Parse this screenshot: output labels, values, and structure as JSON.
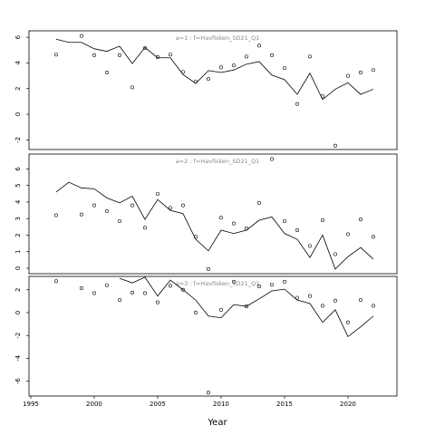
{
  "chart_data": [
    {
      "type": "line",
      "title": "a=1 : f=Havfisken_SD21_Q1",
      "x": [
        1997,
        1998,
        1999,
        2000,
        2001,
        2002,
        2003,
        2004,
        2005,
        2006,
        2007,
        2008,
        2009,
        2010,
        2011,
        2012,
        2013,
        2014,
        2015,
        2016,
        2017,
        2018,
        2019,
        2020,
        2021,
        2022
      ],
      "series": [
        {
          "style": "line",
          "color": "#000000",
          "values": [
            5.85,
            5.6,
            5.6,
            5.1,
            4.9,
            5.3,
            3.95,
            5.2,
            4.4,
            4.4,
            3.1,
            2.4,
            3.4,
            3.25,
            3.45,
            3.9,
            4.1,
            3.05,
            2.7,
            1.55,
            3.2,
            1.15,
            1.95,
            2.45,
            1.55,
            1.95
          ]
        },
        {
          "style": "points",
          "color": "#000000",
          "values": [
            4.65,
            null,
            6.1,
            4.6,
            3.25,
            4.6,
            2.1,
            5.15,
            4.45,
            4.65,
            3.3,
            2.55,
            2.75,
            3.65,
            3.8,
            4.5,
            5.35,
            4.6,
            3.6,
            0.8,
            4.5,
            1.4,
            -2.45,
            3.0,
            3.25,
            3.45
          ]
        }
      ],
      "xlim": [
        1994.86,
        2023.86
      ],
      "ylim": [
        -2.75,
        6.5
      ],
      "yticks": [
        -2,
        0,
        2,
        4,
        6
      ]
    },
    {
      "type": "line",
      "title": "a=2 : f=Havfisken_SD21_Q1",
      "x": [
        1997,
        1998,
        1999,
        2000,
        2001,
        2002,
        2003,
        2004,
        2005,
        2006,
        2007,
        2008,
        2009,
        2010,
        2011,
        2012,
        2013,
        2014,
        2015,
        2016,
        2017,
        2018,
        2019,
        2020,
        2021,
        2022
      ],
      "series": [
        {
          "style": "line",
          "color": "#000000",
          "values": [
            4.6,
            5.2,
            4.85,
            4.8,
            4.25,
            3.95,
            4.35,
            2.95,
            4.15,
            3.5,
            3.3,
            1.75,
            1.05,
            2.3,
            2.1,
            2.3,
            2.9,
            3.1,
            2.1,
            1.75,
            0.65,
            2.0,
            -0.05,
            0.7,
            1.25,
            0.55
          ]
        },
        {
          "style": "points",
          "color": "#000000",
          "values": [
            3.2,
            null,
            3.25,
            3.8,
            3.45,
            2.85,
            3.8,
            2.45,
            4.5,
            3.65,
            3.8,
            1.9,
            -0.05,
            3.05,
            2.7,
            2.4,
            3.95,
            6.6,
            2.85,
            2.3,
            1.35,
            2.9,
            0.85,
            2.05,
            2.95,
            1.9
          ]
        }
      ],
      "xlim": [
        1994.86,
        2023.86
      ],
      "ylim": [
        -0.33,
        6.9
      ],
      "yticks": [
        0,
        1,
        2,
        3,
        4,
        5,
        6
      ]
    },
    {
      "type": "line",
      "title": "a=3 : f=Havfisken_SD21_Q1",
      "xlabel": "Year",
      "x": [
        1997,
        1998,
        1999,
        2000,
        2001,
        2002,
        2003,
        2004,
        2005,
        2006,
        2007,
        2008,
        2009,
        2010,
        2011,
        2012,
        2013,
        2014,
        2015,
        2016,
        2017,
        2018,
        2019,
        2020,
        2021,
        2022
      ],
      "series": [
        {
          "style": "line",
          "color": "#000000",
          "values": [
            null,
            null,
            null,
            null,
            null,
            3.0,
            2.6,
            3.1,
            1.45,
            2.85,
            2.0,
            1.1,
            -0.3,
            -0.45,
            0.7,
            0.55,
            1.2,
            1.9,
            2.05,
            1.1,
            0.8,
            -0.85,
            0.25,
            -2.1,
            -1.25,
            -0.3
          ]
        },
        {
          "style": "points",
          "color": "#000000",
          "values": [
            2.75,
            null,
            2.15,
            1.7,
            2.4,
            1.1,
            1.75,
            1.7,
            0.9,
            2.35,
            2.0,
            0.0,
            -7.0,
            0.25,
            2.7,
            0.55,
            2.3,
            2.45,
            2.7,
            1.3,
            1.45,
            0.6,
            1.05,
            -0.85,
            1.1,
            0.6
          ]
        }
      ],
      "xlim": [
        1994.86,
        2023.86
      ],
      "ylim": [
        -7.3,
        3.17
      ],
      "yticks": [
        -6,
        -4,
        -2,
        0,
        2
      ],
      "xticks": [
        1995,
        2000,
        2005,
        2010,
        2015,
        2020
      ]
    }
  ]
}
